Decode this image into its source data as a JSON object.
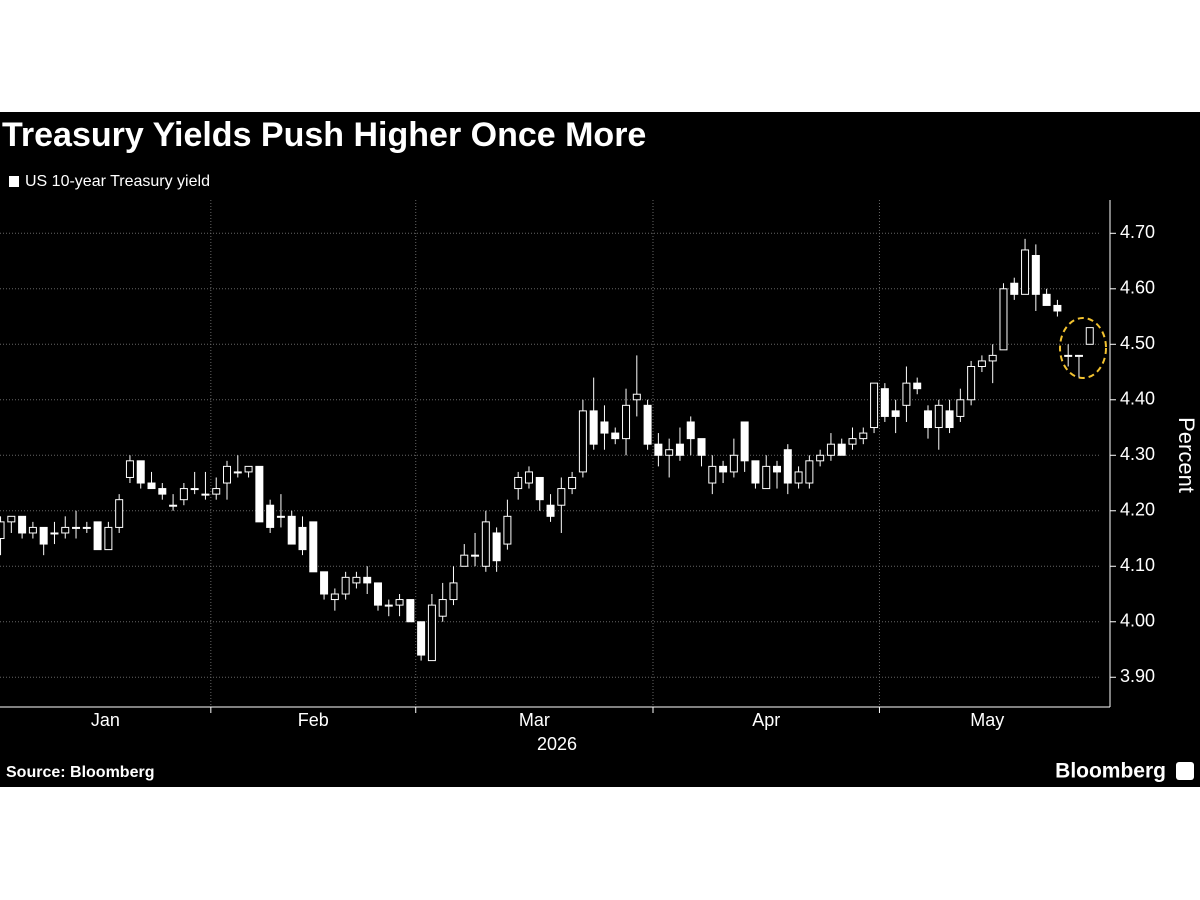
{
  "chart_data": {
    "type": "candlestick",
    "title": "Treasury Yields Push Higher Once More",
    "series_name": "US 10-year Treasury yield",
    "y_label": "Percent",
    "year_label": "2026",
    "source": "Source: Bloomberg",
    "brand": "Bloomberg",
    "ylim": [
      3.85,
      4.76
    ],
    "yticks": [
      {
        "value": 3.9,
        "label": "3.90"
      },
      {
        "value": 4.0,
        "label": "4.00"
      },
      {
        "value": 4.1,
        "label": "4.10"
      },
      {
        "value": 4.2,
        "label": "4.20"
      },
      {
        "value": 4.3,
        "label": "4.30"
      },
      {
        "value": 4.4,
        "label": "4.40"
      },
      {
        "value": 4.5,
        "label": "4.50"
      },
      {
        "value": 4.6,
        "label": "4.60"
      },
      {
        "value": 4.7,
        "label": "4.70"
      }
    ],
    "grid": true,
    "months": [
      {
        "name": "Jan",
        "candles": [
          [
            4.15,
            4.19,
            4.12,
            4.18
          ],
          [
            4.18,
            4.19,
            4.16,
            4.19
          ],
          [
            4.19,
            4.19,
            4.15,
            4.16
          ],
          [
            4.16,
            4.18,
            4.15,
            4.17
          ],
          [
            4.17,
            4.17,
            4.12,
            4.14
          ],
          [
            4.16,
            4.18,
            4.14,
            4.16
          ],
          [
            4.16,
            4.19,
            4.15,
            4.17
          ],
          [
            4.17,
            4.2,
            4.15,
            4.17
          ],
          [
            4.17,
            4.18,
            4.16,
            4.17
          ],
          [
            4.18,
            4.18,
            4.13,
            4.13
          ],
          [
            4.13,
            4.18,
            4.13,
            4.17
          ],
          [
            4.17,
            4.23,
            4.16,
            4.22
          ],
          [
            4.26,
            4.3,
            4.25,
            4.29
          ],
          [
            4.29,
            4.29,
            4.24,
            4.25
          ],
          [
            4.25,
            4.27,
            4.24,
            4.24
          ],
          [
            4.24,
            4.25,
            4.22,
            4.23
          ],
          [
            4.21,
            4.23,
            4.2,
            4.21
          ],
          [
            4.22,
            4.25,
            4.21,
            4.24
          ],
          [
            4.24,
            4.27,
            4.23,
            4.24
          ],
          [
            4.23,
            4.27,
            4.22,
            4.23
          ]
        ]
      },
      {
        "name": "Feb",
        "candles": [
          [
            4.23,
            4.26,
            4.22,
            4.24
          ],
          [
            4.25,
            4.29,
            4.22,
            4.28
          ],
          [
            4.27,
            4.3,
            4.26,
            4.27
          ],
          [
            4.27,
            4.28,
            4.26,
            4.28
          ],
          [
            4.28,
            4.28,
            4.18,
            4.18
          ],
          [
            4.21,
            4.22,
            4.16,
            4.17
          ],
          [
            4.19,
            4.23,
            4.17,
            4.19
          ],
          [
            4.19,
            4.2,
            4.14,
            4.14
          ],
          [
            4.17,
            4.19,
            4.12,
            4.13
          ],
          [
            4.18,
            4.18,
            4.09,
            4.09
          ],
          [
            4.09,
            4.09,
            4.04,
            4.05
          ],
          [
            4.04,
            4.06,
            4.02,
            4.05
          ],
          [
            4.05,
            4.09,
            4.04,
            4.08
          ],
          [
            4.07,
            4.09,
            4.06,
            4.08
          ],
          [
            4.08,
            4.1,
            4.05,
            4.07
          ],
          [
            4.07,
            4.07,
            4.02,
            4.03
          ],
          [
            4.03,
            4.04,
            4.01,
            4.03
          ],
          [
            4.03,
            4.05,
            4.01,
            4.04
          ],
          [
            4.04,
            4.04,
            4.0,
            4.0
          ]
        ]
      },
      {
        "name": "Mar",
        "candles": [
          [
            4.0,
            4.0,
            3.93,
            3.94
          ],
          [
            3.93,
            4.05,
            3.93,
            4.03
          ],
          [
            4.01,
            4.07,
            4.0,
            4.04
          ],
          [
            4.04,
            4.1,
            4.03,
            4.07
          ],
          [
            4.1,
            4.14,
            4.1,
            4.12
          ],
          [
            4.12,
            4.16,
            4.1,
            4.12
          ],
          [
            4.1,
            4.2,
            4.09,
            4.18
          ],
          [
            4.16,
            4.17,
            4.09,
            4.11
          ],
          [
            4.14,
            4.22,
            4.13,
            4.19
          ],
          [
            4.24,
            4.27,
            4.22,
            4.26
          ],
          [
            4.25,
            4.28,
            4.24,
            4.27
          ],
          [
            4.26,
            4.26,
            4.2,
            4.22
          ],
          [
            4.21,
            4.23,
            4.18,
            4.19
          ],
          [
            4.21,
            4.26,
            4.16,
            4.24
          ],
          [
            4.24,
            4.27,
            4.23,
            4.26
          ],
          [
            4.27,
            4.4,
            4.26,
            4.38
          ],
          [
            4.38,
            4.44,
            4.31,
            4.32
          ],
          [
            4.36,
            4.39,
            4.31,
            4.34
          ],
          [
            4.34,
            4.35,
            4.32,
            4.33
          ],
          [
            4.33,
            4.42,
            4.3,
            4.39
          ],
          [
            4.4,
            4.48,
            4.37,
            4.41
          ],
          [
            4.39,
            4.4,
            4.31,
            4.32
          ]
        ]
      },
      {
        "name": "Apr",
        "candles": [
          [
            4.32,
            4.34,
            4.28,
            4.3
          ],
          [
            4.3,
            4.33,
            4.26,
            4.31
          ],
          [
            4.32,
            4.35,
            4.29,
            4.3
          ],
          [
            4.36,
            4.37,
            4.3,
            4.33
          ],
          [
            4.33,
            4.33,
            4.28,
            4.3
          ],
          [
            4.25,
            4.3,
            4.23,
            4.28
          ],
          [
            4.28,
            4.29,
            4.25,
            4.27
          ],
          [
            4.27,
            4.33,
            4.26,
            4.3
          ],
          [
            4.36,
            4.36,
            4.27,
            4.29
          ],
          [
            4.29,
            4.29,
            4.24,
            4.25
          ],
          [
            4.24,
            4.3,
            4.24,
            4.28
          ],
          [
            4.28,
            4.29,
            4.24,
            4.27
          ],
          [
            4.31,
            4.32,
            4.23,
            4.25
          ],
          [
            4.25,
            4.28,
            4.24,
            4.27
          ],
          [
            4.25,
            4.3,
            4.24,
            4.29
          ],
          [
            4.29,
            4.31,
            4.28,
            4.3
          ],
          [
            4.3,
            4.34,
            4.29,
            4.32
          ],
          [
            4.32,
            4.33,
            4.3,
            4.3
          ],
          [
            4.32,
            4.35,
            4.31,
            4.33
          ],
          [
            4.33,
            4.35,
            4.32,
            4.34
          ],
          [
            4.35,
            4.43,
            4.34,
            4.43
          ]
        ]
      },
      {
        "name": "May",
        "candles": [
          [
            4.42,
            4.43,
            4.36,
            4.37
          ],
          [
            4.38,
            4.4,
            4.34,
            4.37
          ],
          [
            4.39,
            4.46,
            4.36,
            4.43
          ],
          [
            4.43,
            4.44,
            4.41,
            4.42
          ],
          [
            4.38,
            4.39,
            4.33,
            4.35
          ],
          [
            4.35,
            4.4,
            4.31,
            4.39
          ],
          [
            4.38,
            4.4,
            4.34,
            4.35
          ],
          [
            4.37,
            4.42,
            4.36,
            4.4
          ],
          [
            4.4,
            4.47,
            4.39,
            4.46
          ],
          [
            4.46,
            4.48,
            4.45,
            4.47
          ],
          [
            4.47,
            4.5,
            4.43,
            4.48
          ],
          [
            4.49,
            4.61,
            4.49,
            4.6
          ],
          [
            4.61,
            4.62,
            4.58,
            4.59
          ],
          [
            4.59,
            4.69,
            4.59,
            4.67
          ],
          [
            4.66,
            4.68,
            4.56,
            4.59
          ],
          [
            4.59,
            4.6,
            4.57,
            4.57
          ],
          [
            4.57,
            4.58,
            4.55,
            4.56
          ],
          [
            4.48,
            4.5,
            4.46,
            4.48
          ],
          [
            4.48,
            4.48,
            4.44,
            4.48
          ],
          [
            4.5,
            4.53,
            4.5,
            4.53
          ]
        ]
      }
    ]
  }
}
